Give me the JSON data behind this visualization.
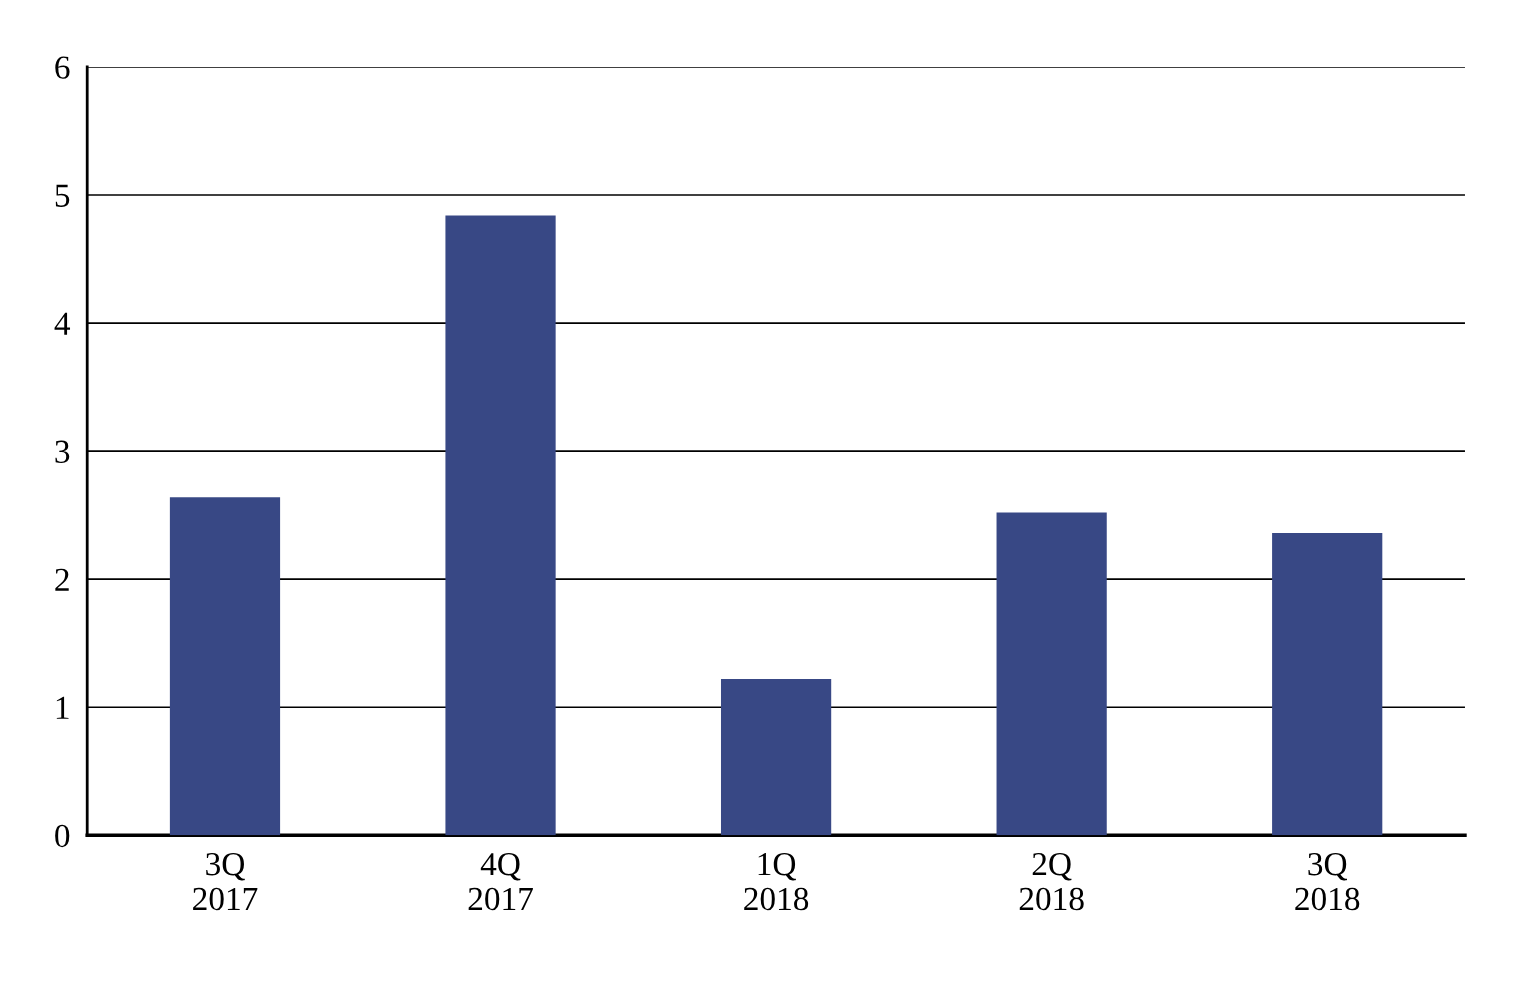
{
  "chart_data": {
    "type": "bar",
    "categories": [
      "3Q\n2017",
      "4Q\n2017",
      "1Q\n2018",
      "2Q\n2018",
      "3Q\n2018"
    ],
    "values": [
      2.64,
      4.84,
      1.22,
      2.52,
      2.36
    ],
    "color": "#384885",
    "ylim": [
      0,
      6
    ],
    "yticks": [
      0,
      1,
      2,
      3,
      4,
      5,
      6
    ],
    "grid": "y",
    "legend": false
  }
}
